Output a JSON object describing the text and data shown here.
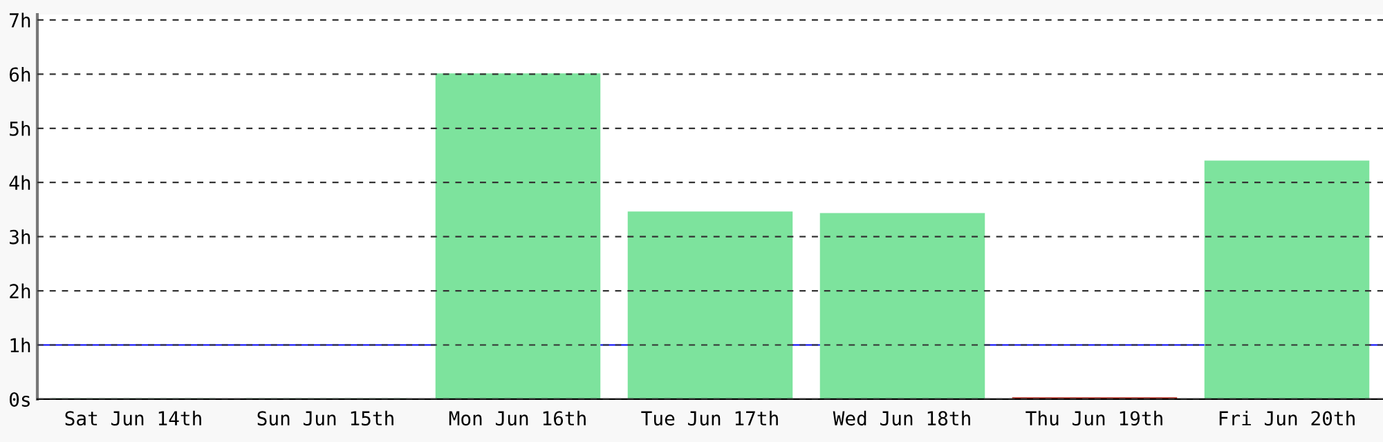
{
  "chart_data": {
    "type": "bar",
    "categories": [
      "Sat Jun 14th",
      "Sun Jun 15th",
      "Mon Jun 16th",
      "Tue Jun 17th",
      "Wed Jun 18th",
      "Thu Jun 19th",
      "Fri Jun 20th"
    ],
    "values": [
      0,
      0,
      6.0,
      3.45,
      3.42,
      0.02,
      4.39
    ],
    "colors": [
      "#7de39d",
      "#7de39d",
      "#7de39d",
      "#7de39d",
      "#7de39d",
      "#c0392b",
      "#7de39d"
    ],
    "ylim": [
      0,
      7.1
    ],
    "yticks": [
      {
        "value": 0,
        "label": "0s"
      },
      {
        "value": 1,
        "label": "1h"
      },
      {
        "value": 2,
        "label": "2h"
      },
      {
        "value": 3,
        "label": "3h"
      },
      {
        "value": 4,
        "label": "4h"
      },
      {
        "value": 5,
        "label": "5h"
      },
      {
        "value": 6,
        "label": "6h"
      },
      {
        "value": 7,
        "label": "7h"
      }
    ],
    "grid": "y",
    "line_style": "dashed",
    "ref_lines": [
      {
        "axis": "y",
        "value": 1,
        "label": null,
        "color": "#0000ff"
      }
    ]
  }
}
